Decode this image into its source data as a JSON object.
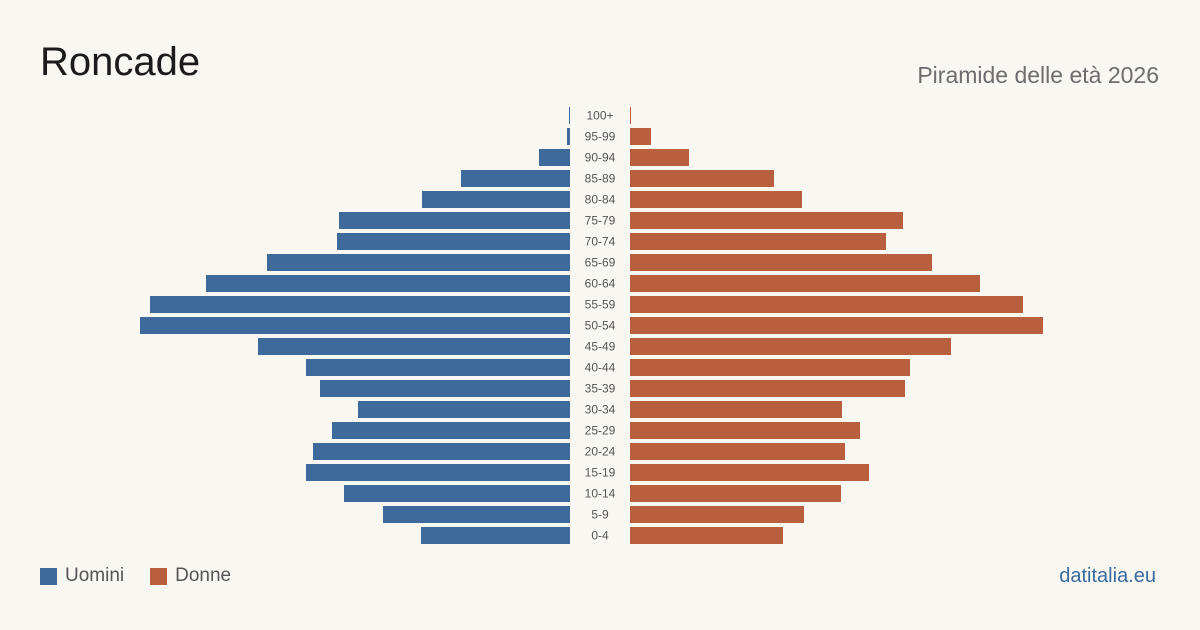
{
  "header": {
    "title": "Roncade",
    "subtitle": "Piramide delle età 2026"
  },
  "legend": {
    "men_label": "Uomini",
    "women_label": "Donne"
  },
  "footer": {
    "site": "datitalia.eu"
  },
  "colors": {
    "men": "#3e6a9b",
    "women": "#b95f3e",
    "background": "#f9f7f2"
  },
  "chart_data": {
    "type": "bar",
    "orientation": "horizontal-pyramid",
    "categories": [
      "100+",
      "95-99",
      "90-94",
      "85-89",
      "80-84",
      "75-79",
      "70-74",
      "65-69",
      "60-64",
      "55-59",
      "50-54",
      "45-49",
      "40-44",
      "35-39",
      "30-34",
      "25-29",
      "20-24",
      "15-19",
      "10-14",
      "5-9",
      "0-4"
    ],
    "series": [
      {
        "name": "Uomini",
        "values": [
          1,
          3,
          31,
          109,
          148,
          231,
          233,
          303,
          364,
          420,
          430,
          312,
          264,
          250,
          212,
          238,
          257,
          264,
          226,
          187,
          149
        ]
      },
      {
        "name": "Donne",
        "values": [
          1,
          21,
          59,
          144,
          172,
          273,
          256,
          302,
          350,
          393,
          413,
          321,
          280,
          275,
          212,
          230,
          215,
          239,
          211,
          174,
          153
        ]
      }
    ],
    "xlim": [
      0,
      430
    ],
    "grid": false,
    "legend_position": "bottom-left"
  }
}
